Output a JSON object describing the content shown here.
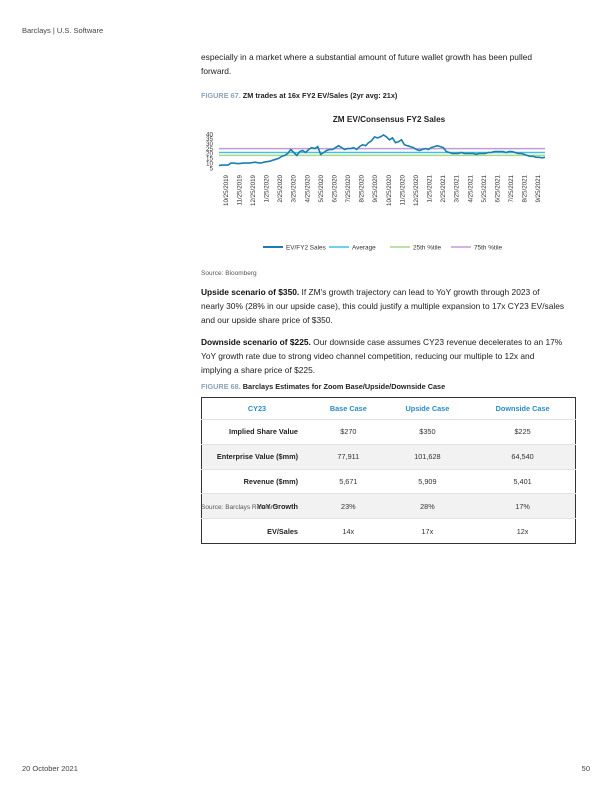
{
  "header": "Barclays | U.S. Software",
  "intro": {
    "line1": "especially in a market where a substantial amount of future wallet growth has been pulled",
    "line2": "forward."
  },
  "figure67": {
    "label": "FIGURE 67.",
    "caption": "ZM trades at 16x FY2 EV/Sales (2yr avg: 21x)",
    "source": "Source: Bloomberg"
  },
  "chart_data": {
    "type": "line",
    "title": "ZM EV/Consensus FY2 Sales",
    "xlabel": "",
    "ylabel": "",
    "ylim": [
      5,
      40
    ],
    "yticks": [
      "40",
      "35",
      "30",
      "25",
      "20",
      "15",
      "10",
      "5"
    ],
    "x_tick_labels": [
      "10/25/2019",
      "11/25/2019",
      "12/25/2019",
      "1/25/2020",
      "2/25/2020",
      "3/25/2020",
      "4/25/2020",
      "5/25/2020",
      "6/25/2020",
      "7/25/2020",
      "8/25/2020",
      "9/25/2020",
      "10/25/2020",
      "11/25/2020",
      "12/25/2020",
      "1/25/2021",
      "2/25/2021",
      "3/25/2021",
      "4/25/2021",
      "5/25/2021",
      "6/25/2021",
      "7/25/2021",
      "8/25/2021",
      "9/25/2021"
    ],
    "legend_position": "bottom",
    "grid": false,
    "series": [
      {
        "name": "EV/FY2 Sales",
        "color": "#1a7fb0",
        "values": [
          7.5,
          8,
          8,
          8,
          10,
          10,
          9.5,
          9.5,
          10,
          10,
          10,
          10.5,
          11,
          10.5,
          10,
          11,
          11.5,
          12,
          13,
          14,
          15,
          17,
          18,
          20,
          24,
          21,
          18,
          22,
          23,
          21,
          24,
          26,
          25,
          27,
          19,
          21,
          23,
          24,
          24,
          26,
          28,
          26,
          24,
          25,
          25,
          26,
          24,
          27,
          29,
          28,
          31,
          33,
          37,
          36,
          37,
          39,
          37,
          34,
          36,
          31,
          32,
          34,
          29,
          28,
          27,
          26,
          24,
          23,
          24,
          25,
          24,
          26,
          27,
          28,
          27,
          26,
          22,
          21,
          20,
          20,
          20,
          21,
          20,
          20,
          20,
          20,
          19,
          20,
          20,
          20,
          21,
          21,
          22,
          22,
          22,
          22,
          21,
          22,
          22,
          21,
          20,
          20,
          19,
          18,
          17,
          17,
          16,
          16,
          15.5,
          16
        ]
      },
      {
        "name": "Average",
        "color": "#45c1e0",
        "value": 21
      },
      {
        "name": "25th %tile",
        "color": "#a9d68a",
        "value": 18
      },
      {
        "name": "75th %tile",
        "color": "#c59ad6",
        "value": 25
      }
    ]
  },
  "upside": {
    "lead": "Upside scenario of $350.",
    "line1": " If ZM's growth trajectory can lead to YoY growth through 2023 of",
    "line2": "nearly 30% (28% in our upside case), this could justify a multiple expansion to 17x CY23 EV/sales",
    "line3": "and our upside share price of $350."
  },
  "downside": {
    "lead": "Downside scenario of $225.",
    "line1": " Our downside case assumes CY23 revenue decelerates to an 17%",
    "line2": "YoY growth rate due to strong video channel competition, reducing our multiple to 12x and",
    "line3": "implying a share price of $225."
  },
  "figure68": {
    "label": "FIGURE 68.",
    "caption": "Barclays Estimates for Zoom Base/Upside/Downside Case",
    "source": "Source: Barclays Research"
  },
  "table": {
    "headers": [
      "CY23",
      "Base Case",
      "Upside Case",
      "Downside Case"
    ],
    "rows": [
      [
        "Implied Share Value",
        "$270",
        "$350",
        "$225"
      ],
      [
        "Enterprise Value ($mm)",
        "77,911",
        "101,628",
        "64,540"
      ],
      [
        "Revenue ($mm)",
        "5,671",
        "5,909",
        "5,401"
      ],
      [
        "YoY Growth",
        "23%",
        "28%",
        "17%"
      ],
      [
        "EV/Sales",
        "14x",
        "17x",
        "12x"
      ]
    ]
  },
  "footer": {
    "date": "20 October 2021",
    "page": "50"
  }
}
